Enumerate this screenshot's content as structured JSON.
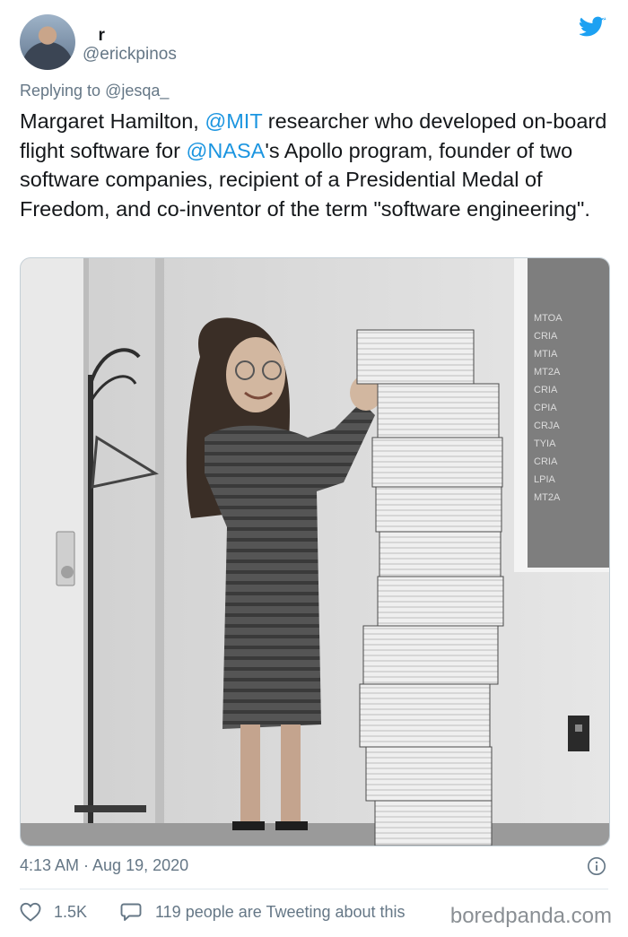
{
  "header": {
    "display_name": "ﾠrﾠﾠﾠ ﾠﾠﾠﾠﾠ",
    "handle": "@erickpinos"
  },
  "reply": {
    "prefix": "Replying to ",
    "mention": "@jesqa_"
  },
  "tweet": {
    "part1": "Margaret Hamilton, ",
    "mention1": "@MIT",
    "part2": " researcher who developed on-board flight software for ",
    "mention2": "@NASA",
    "part3": "'s Apollo program, founder of two software companies, recipient of a Presidential Medal of Freedom, and co-inventor of the term \"software engineering\"."
  },
  "photo": {
    "board_lines": [
      "MTOA",
      "CRIA",
      "MTIA",
      "MT2A",
      "CRIA",
      "CPIA",
      "CRJA",
      "TYIA",
      "CRIA",
      "LPIA",
      "MT2A"
    ]
  },
  "meta": {
    "timestamp": "4:13 AM · Aug 19, 2020"
  },
  "actions": {
    "likes": "1.5K",
    "tweeting_about": "119 people are Tweeting about this"
  },
  "watermark": "boredpanda.com",
  "colors": {
    "link": "#1b95e0",
    "muted": "#657786",
    "twitter_blue": "#1da1f2",
    "divider": "#e1e8ed"
  }
}
